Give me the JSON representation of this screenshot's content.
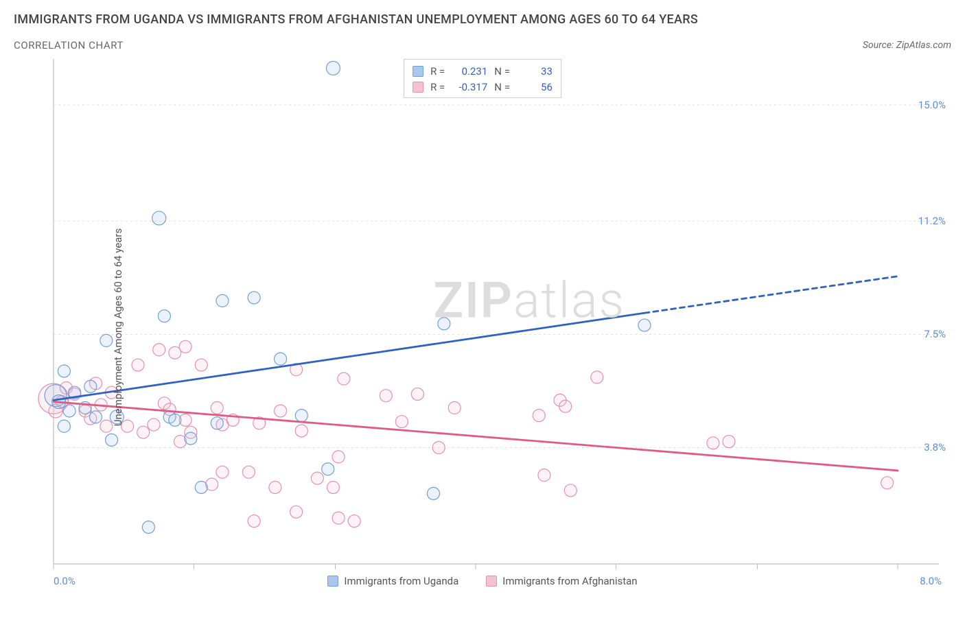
{
  "header": {
    "title": "IMMIGRANTS FROM UGANDA VS IMMIGRANTS FROM AFGHANISTAN UNEMPLOYMENT AMONG AGES 60 TO 64 YEARS",
    "subtitle": "CORRELATION CHART",
    "source": "Source: ZipAtlas.com"
  },
  "chart": {
    "type": "scatter",
    "ylabel": "Unemployment Among Ages 60 to 64 years",
    "xlim": [
      0,
      8
    ],
    "ylim": [
      0,
      16.5
    ],
    "xtick_min_label": "0.0%",
    "xtick_max_label": "8.0%",
    "xtick_positions": [
      0,
      1.33,
      2.67,
      4.0,
      5.33,
      6.67,
      8.0
    ],
    "yticks": [
      {
        "v": 3.8,
        "label": "3.8%"
      },
      {
        "v": 7.5,
        "label": "7.5%"
      },
      {
        "v": 11.2,
        "label": "11.2%"
      },
      {
        "v": 15.0,
        "label": "15.0%"
      }
    ],
    "grid_color": "#e0e0e0",
    "axis_color": "#bfbfbf",
    "background_color": "#ffffff",
    "marker_radius": 9,
    "marker_fill_opacity": 0.22,
    "marker_stroke_width": 1.2,
    "trend_line_width": 2.8,
    "axis_label_fontsize": 15,
    "tick_label_color": "#5b8dd6",
    "series": [
      {
        "id": "uganda",
        "label": "Immigrants from Uganda",
        "color_fill": "#a9c6ec",
        "color_stroke": "#6f9fd8",
        "trend_color": "#2f61c4",
        "r": "0.231",
        "n": "33",
        "points": [
          [
            0.02,
            5.5,
            16
          ],
          [
            0.05,
            5.3,
            10
          ],
          [
            0.1,
            6.3,
            9
          ],
          [
            0.1,
            4.5,
            9
          ],
          [
            0.15,
            5.0,
            9
          ],
          [
            0.2,
            5.6,
            9
          ],
          [
            0.3,
            5.1,
            9
          ],
          [
            0.35,
            5.8,
            9
          ],
          [
            0.4,
            4.8,
            9
          ],
          [
            0.5,
            7.3,
            9
          ],
          [
            0.55,
            4.05,
            9
          ],
          [
            0.6,
            4.8,
            10
          ],
          [
            0.9,
            1.2,
            9
          ],
          [
            1.0,
            11.3,
            10
          ],
          [
            1.05,
            8.1,
            9
          ],
          [
            1.1,
            4.8,
            9
          ],
          [
            1.15,
            4.7,
            9
          ],
          [
            1.3,
            4.1,
            9
          ],
          [
            1.4,
            2.5,
            9
          ],
          [
            1.55,
            4.6,
            9
          ],
          [
            1.6,
            8.6,
            9
          ],
          [
            1.9,
            8.7,
            9
          ],
          [
            2.15,
            6.7,
            9
          ],
          [
            2.35,
            4.85,
            9
          ],
          [
            2.6,
            3.1,
            9
          ],
          [
            2.65,
            16.2,
            10
          ],
          [
            3.6,
            2.3,
            9
          ],
          [
            3.7,
            7.85,
            9
          ],
          [
            5.6,
            7.8,
            9
          ]
        ],
        "trend_line": {
          "x1": 0.0,
          "y1": 5.35,
          "x2": 5.6,
          "y2": 8.2,
          "extrap_x2": 8.0,
          "extrap_y2": 9.4
        }
      },
      {
        "id": "afghanistan",
        "label": "Immigrants from Afghanistan",
        "color_fill": "#f4c3d0",
        "color_stroke": "#e78fab",
        "trend_color": "#e05a86",
        "r": "-0.317",
        "n": "56",
        "points": [
          [
            0.0,
            5.4,
            22
          ],
          [
            0.02,
            5.0,
            10
          ],
          [
            0.08,
            5.3,
            9
          ],
          [
            0.12,
            5.75,
            9
          ],
          [
            0.2,
            5.55,
            9
          ],
          [
            0.3,
            5.0,
            9
          ],
          [
            0.35,
            4.75,
            9
          ],
          [
            0.4,
            5.9,
            9
          ],
          [
            0.45,
            5.2,
            9
          ],
          [
            0.5,
            4.5,
            9
          ],
          [
            0.55,
            5.6,
            9
          ],
          [
            0.7,
            4.5,
            9
          ],
          [
            0.8,
            6.5,
            9
          ],
          [
            0.85,
            4.3,
            9
          ],
          [
            0.95,
            4.55,
            9
          ],
          [
            1.0,
            7.0,
            9
          ],
          [
            1.05,
            5.25,
            9
          ],
          [
            1.1,
            5.05,
            9
          ],
          [
            1.15,
            6.9,
            9
          ],
          [
            1.2,
            4.0,
            9
          ],
          [
            1.25,
            4.7,
            9
          ],
          [
            1.25,
            7.1,
            9
          ],
          [
            1.3,
            4.3,
            9
          ],
          [
            1.4,
            6.5,
            9
          ],
          [
            1.5,
            2.6,
            9
          ],
          [
            1.55,
            5.1,
            9
          ],
          [
            1.6,
            3.0,
            9
          ],
          [
            1.6,
            4.55,
            9
          ],
          [
            1.7,
            4.7,
            9
          ],
          [
            1.85,
            3.0,
            9
          ],
          [
            1.9,
            1.4,
            9
          ],
          [
            1.95,
            4.6,
            9
          ],
          [
            2.1,
            2.5,
            9
          ],
          [
            2.15,
            5.0,
            9
          ],
          [
            2.3,
            6.35,
            9
          ],
          [
            2.3,
            1.7,
            9
          ],
          [
            2.35,
            4.35,
            9
          ],
          [
            2.5,
            2.8,
            9
          ],
          [
            2.65,
            2.5,
            9
          ],
          [
            2.7,
            3.5,
            9
          ],
          [
            2.7,
            1.5,
            9
          ],
          [
            2.75,
            6.05,
            9
          ],
          [
            2.85,
            1.4,
            9
          ],
          [
            3.15,
            5.5,
            9
          ],
          [
            3.3,
            4.65,
            9
          ],
          [
            3.45,
            5.55,
            9
          ],
          [
            3.65,
            3.8,
            9
          ],
          [
            3.8,
            5.1,
            9
          ],
          [
            4.6,
            4.85,
            9
          ],
          [
            4.65,
            2.9,
            9
          ],
          [
            4.8,
            5.35,
            9
          ],
          [
            4.85,
            5.15,
            9
          ],
          [
            4.9,
            2.4,
            9
          ],
          [
            5.15,
            6.1,
            9
          ],
          [
            6.25,
            3.95,
            9
          ],
          [
            6.4,
            4.0,
            9
          ],
          [
            7.9,
            2.65,
            9
          ]
        ],
        "trend_line": {
          "x1": 0.0,
          "y1": 5.3,
          "x2": 8.0,
          "y2": 3.05
        }
      }
    ],
    "watermark": {
      "bold": "ZIP",
      "light": "atlas",
      "color": "#dddddd"
    }
  },
  "legend_top": {
    "rows": [
      {
        "swatch": "uganda",
        "r_label": "R =",
        "r": "0.231",
        "n_label": "N =",
        "n": "33"
      },
      {
        "swatch": "afghanistan",
        "r_label": "R =",
        "r": "-0.317",
        "n_label": "N =",
        "n": "56"
      }
    ]
  },
  "legend_bottom": [
    {
      "swatch": "uganda",
      "label": "Immigrants from Uganda"
    },
    {
      "swatch": "afghanistan",
      "label": "Immigrants from Afghanistan"
    }
  ]
}
